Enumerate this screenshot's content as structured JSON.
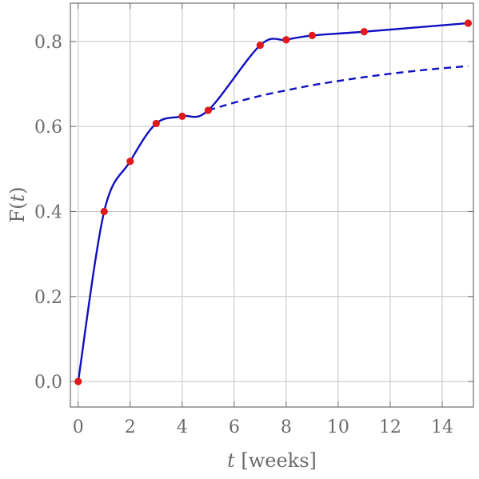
{
  "chart_data": {
    "type": "line",
    "title": "",
    "xlabel": {
      "var": "t",
      "unit": " [weeks]"
    },
    "ylabel": {
      "var": "t",
      "pre": "F(",
      "post": ")"
    },
    "xlim": [
      -0.3,
      15.2
    ],
    "ylim": [
      -0.06,
      0.89
    ],
    "x_ticks": [
      0,
      2,
      4,
      6,
      8,
      10,
      12,
      14
    ],
    "y_ticks": [
      0.0,
      0.2,
      0.4,
      0.6,
      0.8
    ],
    "y_tick_labels": [
      "0.0",
      "0.2",
      "0.4",
      "0.6",
      "0.8"
    ],
    "grid": true,
    "legend": "none",
    "series": [
      {
        "style": "solid-line-with-markers",
        "color": "#1010c0",
        "marker_color": "#e01a1a",
        "x": [
          0,
          1,
          2,
          3,
          4,
          5,
          7,
          8,
          9,
          11,
          15
        ],
        "y": [
          0.0,
          0.4,
          0.518,
          0.607,
          0.624,
          0.638,
          0.791,
          0.804,
          0.814,
          0.823,
          0.843
        ]
      },
      {
        "style": "dashed-line",
        "color": "#1010c0",
        "x": [
          5,
          6,
          7,
          8,
          9,
          10,
          11,
          12,
          13,
          14,
          15
        ],
        "y": [
          0.638,
          0.656,
          0.672,
          0.685,
          0.697,
          0.707,
          0.716,
          0.724,
          0.731,
          0.737,
          0.742
        ]
      }
    ]
  }
}
